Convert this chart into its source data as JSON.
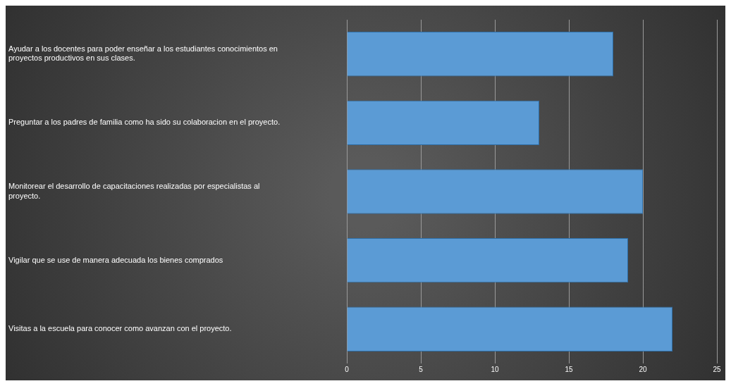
{
  "chart_data": {
    "type": "bar",
    "orientation": "horizontal",
    "categories": [
      "Ayudar a los docentes para poder enseñar a los estudiantes conocimientos en proyectos productivos en sus clases.",
      "Preguntar a los padres de familia como ha sido su colaboracion en el proyecto.",
      "Monitorear el desarrollo de capacitaciones realizadas por especialistas al proyecto.",
      "Vigilar que se use de manera adecuada los bienes comprados",
      "Visitas a la escuela para conocer como avanzan con el proyecto."
    ],
    "values": [
      18,
      13,
      20,
      19,
      22
    ],
    "color": "#5b9bd5",
    "xlim": [
      0,
      25
    ],
    "xticks": [
      0,
      5,
      10,
      15,
      20,
      25
    ],
    "grid": "x",
    "legend": false
  }
}
